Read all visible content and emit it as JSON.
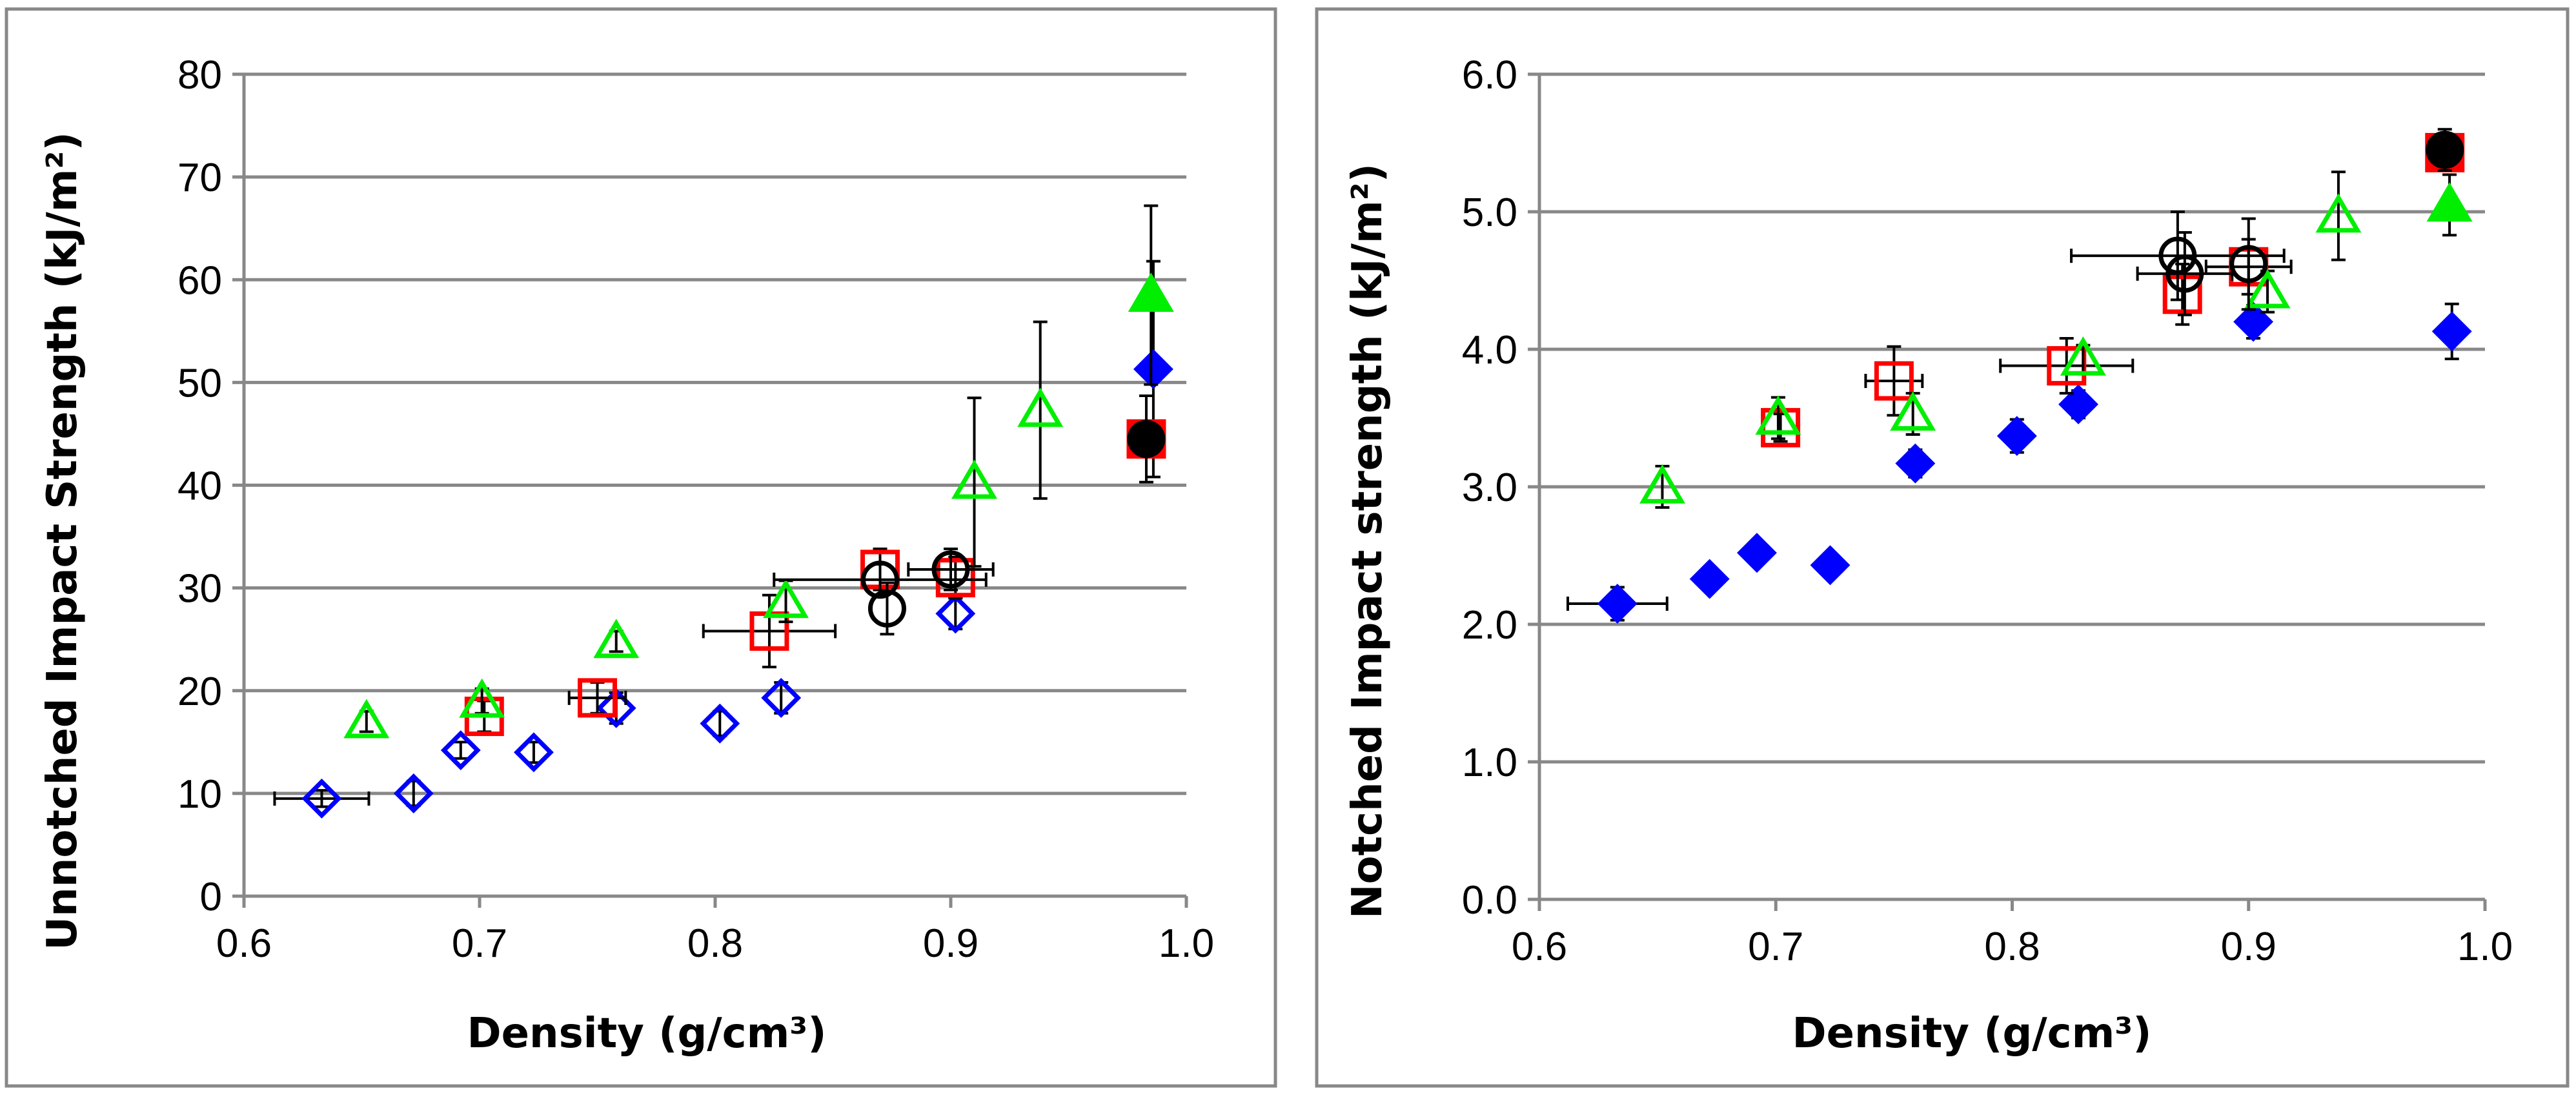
{
  "chart_data": [
    {
      "type": "scatter",
      "title": "",
      "xlabel": "Density (g/cm³)",
      "ylabel": "Unnotched Impact Strength (kJ/m²)",
      "xlim": [
        0.6,
        1.0
      ],
      "ylim": [
        0,
        80
      ],
      "xticks": [
        0.6,
        0.7,
        0.8,
        0.9,
        1.0
      ],
      "xtick_labels": [
        "0.6",
        "0.7",
        "0.8",
        "0.9",
        "1.0"
      ],
      "yticks": [
        0,
        10,
        20,
        30,
        40,
        50,
        60,
        70,
        80
      ],
      "ytick_labels": [
        "0",
        "10",
        "20",
        "30",
        "40",
        "50",
        "60",
        "70",
        "80"
      ],
      "grid": "horizontal",
      "series": [
        {
          "name": "blue diamond",
          "marker": "diamond",
          "color": "#0000ff",
          "fill": "none",
          "points": [
            {
              "x": 0.633,
              "y": 9.5,
              "xerr": 0.02,
              "yerr": 0.8
            },
            {
              "x": 0.672,
              "y": 10.0,
              "xerr": 0.0,
              "yerr": 1.2
            },
            {
              "x": 0.692,
              "y": 14.2,
              "xerr": 0.0,
              "yerr": 0.8
            },
            {
              "x": 0.723,
              "y": 14.0,
              "xerr": 0.0,
              "yerr": 1.0
            },
            {
              "x": 0.758,
              "y": 18.3,
              "xerr": 0.0,
              "yerr": 1.5
            },
            {
              "x": 0.802,
              "y": 16.8,
              "xerr": 0.0,
              "yerr": 1.2
            },
            {
              "x": 0.828,
              "y": 19.3,
              "xerr": 0.0,
              "yerr": 1.5
            },
            {
              "x": 0.902,
              "y": 27.5,
              "xerr": 0.0,
              "yerr": 1.5
            }
          ]
        },
        {
          "name": "blue diamond filled",
          "marker": "diamond",
          "color": "#0000ff",
          "fill": "#0000ff",
          "points": [
            {
              "x": 0.986,
              "y": 51.3,
              "xerr": 0.0,
              "yerr": 10.5
            }
          ]
        },
        {
          "name": "red square",
          "marker": "square",
          "color": "#ff0000",
          "fill": "none",
          "points": [
            {
              "x": 0.702,
              "y": 17.5,
              "xerr": 0.0,
              "yerr": 1.5
            },
            {
              "x": 0.75,
              "y": 19.3,
              "xerr": 0.012,
              "yerr": 1.5
            },
            {
              "x": 0.823,
              "y": 25.8,
              "xerr": 0.028,
              "yerr": 3.5
            },
            {
              "x": 0.87,
              "y": 31.8,
              "xerr": 0.0,
              "yerr": 2.0
            },
            {
              "x": 0.902,
              "y": 31.0,
              "xerr": 0.0,
              "yerr": 2.0
            }
          ]
        },
        {
          "name": "red square filled",
          "marker": "square",
          "color": "#ff0000",
          "fill": "#ff0000",
          "points": [
            {
              "x": 0.983,
              "y": 44.5,
              "xerr": 0.0,
              "yerr": 0.0
            }
          ]
        },
        {
          "name": "green triangle",
          "marker": "triangle",
          "color": "#00ee00",
          "fill": "none",
          "points": [
            {
              "x": 0.652,
              "y": 17.0,
              "xerr": 0.0,
              "yerr": 1.0
            },
            {
              "x": 0.701,
              "y": 19.0,
              "xerr": 0.0,
              "yerr": 1.2
            },
            {
              "x": 0.758,
              "y": 24.8,
              "xerr": 0.0,
              "yerr": 1.0
            },
            {
              "x": 0.83,
              "y": 28.7,
              "xerr": 0.0,
              "yerr": 2.0
            },
            {
              "x": 0.91,
              "y": 40.3,
              "xerr": 0.0,
              "yerr": 8.2
            },
            {
              "x": 0.938,
              "y": 47.3,
              "xerr": 0.0,
              "yerr": 8.6
            }
          ]
        },
        {
          "name": "green triangle filled",
          "marker": "triangle",
          "color": "#00ee00",
          "fill": "#00ee00",
          "points": [
            {
              "x": 0.985,
              "y": 58.5,
              "xerr": 0.0,
              "yerr": 8.7
            }
          ]
        },
        {
          "name": "black circle",
          "marker": "circle",
          "color": "#000000",
          "fill": "none",
          "points": [
            {
              "x": 0.87,
              "y": 30.8,
              "xerr": 0.045,
              "yerr": 1.5
            },
            {
              "x": 0.873,
              "y": 28.0,
              "xerr": 0.0,
              "yerr": 2.5
            },
            {
              "x": 0.9,
              "y": 31.8,
              "xerr": 0.018,
              "yerr": 2.0
            }
          ]
        },
        {
          "name": "black circle filled",
          "marker": "circle",
          "color": "#000000",
          "fill": "#000000",
          "points": [
            {
              "x": 0.983,
              "y": 44.5,
              "xerr": 0.0,
              "yerr": 4.2
            }
          ]
        }
      ]
    },
    {
      "type": "scatter",
      "title": "",
      "xlabel": "Density (g/cm³)",
      "ylabel": "Notched Impact strength (kJ/m²)",
      "xlim": [
        0.6,
        1.0
      ],
      "ylim": [
        0,
        6
      ],
      "xticks": [
        0.6,
        0.7,
        0.8,
        0.9,
        1.0
      ],
      "xtick_labels": [
        "0.6",
        "0.7",
        "0.8",
        "0.9",
        "1.0"
      ],
      "yticks": [
        0,
        1,
        2,
        3,
        4,
        5,
        6
      ],
      "ytick_labels": [
        "0.0",
        "1.0",
        "2.0",
        "3.0",
        "4.0",
        "5.0",
        "6.0"
      ],
      "grid": "horizontal",
      "series": [
        {
          "name": "blue diamond filled",
          "marker": "diamond",
          "color": "#0000ff",
          "fill": "#0000ff",
          "points": [
            {
              "x": 0.633,
              "y": 2.15,
              "xerr": 0.021,
              "yerr": 0.12
            },
            {
              "x": 0.672,
              "y": 2.33,
              "xerr": 0.0,
              "yerr": 0.08
            },
            {
              "x": 0.692,
              "y": 2.52,
              "xerr": 0.0,
              "yerr": 0.08
            },
            {
              "x": 0.723,
              "y": 2.43,
              "xerr": 0.0,
              "yerr": 0.05
            },
            {
              "x": 0.759,
              "y": 3.17,
              "xerr": 0.0,
              "yerr": 0.1
            },
            {
              "x": 0.802,
              "y": 3.37,
              "xerr": 0.0,
              "yerr": 0.12
            },
            {
              "x": 0.828,
              "y": 3.6,
              "xerr": 0.0,
              "yerr": 0.1
            },
            {
              "x": 0.902,
              "y": 4.2,
              "xerr": 0.0,
              "yerr": 0.12
            },
            {
              "x": 0.986,
              "y": 4.13,
              "xerr": 0.0,
              "yerr": 0.2
            }
          ]
        },
        {
          "name": "red square",
          "marker": "square",
          "color": "#ff0000",
          "fill": "none",
          "points": [
            {
              "x": 0.702,
              "y": 3.43,
              "xerr": 0.0,
              "yerr": 0.1
            },
            {
              "x": 0.75,
              "y": 3.77,
              "xerr": 0.012,
              "yerr": 0.25
            },
            {
              "x": 0.823,
              "y": 3.88,
              "xerr": 0.028,
              "yerr": 0.2
            },
            {
              "x": 0.872,
              "y": 4.4,
              "xerr": 0.0,
              "yerr": 0.22
            },
            {
              "x": 0.9,
              "y": 4.6,
              "xerr": 0.018,
              "yerr": 0.2
            }
          ]
        },
        {
          "name": "red square filled",
          "marker": "square",
          "color": "#ff0000",
          "fill": "#ff0000",
          "points": [
            {
              "x": 0.983,
              "y": 5.43,
              "xerr": 0.0,
              "yerr": 0.0
            }
          ]
        },
        {
          "name": "green triangle",
          "marker": "triangle",
          "color": "#00ee00",
          "fill": "none",
          "points": [
            {
              "x": 0.652,
              "y": 3.0,
              "xerr": 0.0,
              "yerr": 0.15
            },
            {
              "x": 0.701,
              "y": 3.5,
              "xerr": 0.0,
              "yerr": 0.15
            },
            {
              "x": 0.758,
              "y": 3.53,
              "xerr": 0.0,
              "yerr": 0.15
            },
            {
              "x": 0.83,
              "y": 3.93,
              "xerr": 0.0,
              "yerr": 0.1
            },
            {
              "x": 0.908,
              "y": 4.42,
              "xerr": 0.0,
              "yerr": 0.15
            },
            {
              "x": 0.938,
              "y": 4.97,
              "xerr": 0.0,
              "yerr": 0.32
            }
          ]
        },
        {
          "name": "green triangle filled",
          "marker": "triangle",
          "color": "#00ee00",
          "fill": "#00ee00",
          "points": [
            {
              "x": 0.985,
              "y": 5.05,
              "xerr": 0.0,
              "yerr": 0.22
            }
          ]
        },
        {
          "name": "black circle",
          "marker": "circle",
          "color": "#000000",
          "fill": "none",
          "points": [
            {
              "x": 0.87,
              "y": 4.68,
              "xerr": 0.045,
              "yerr": 0.32
            },
            {
              "x": 0.873,
              "y": 4.55,
              "xerr": 0.02,
              "yerr": 0.3
            },
            {
              "x": 0.9,
              "y": 4.62,
              "xerr": 0.0,
              "yerr": 0.33
            }
          ]
        },
        {
          "name": "black circle filled",
          "marker": "circle",
          "color": "#000000",
          "fill": "#000000",
          "points": [
            {
              "x": 0.983,
              "y": 5.45,
              "xerr": 0.0,
              "yerr": 0.15
            }
          ]
        }
      ]
    }
  ]
}
